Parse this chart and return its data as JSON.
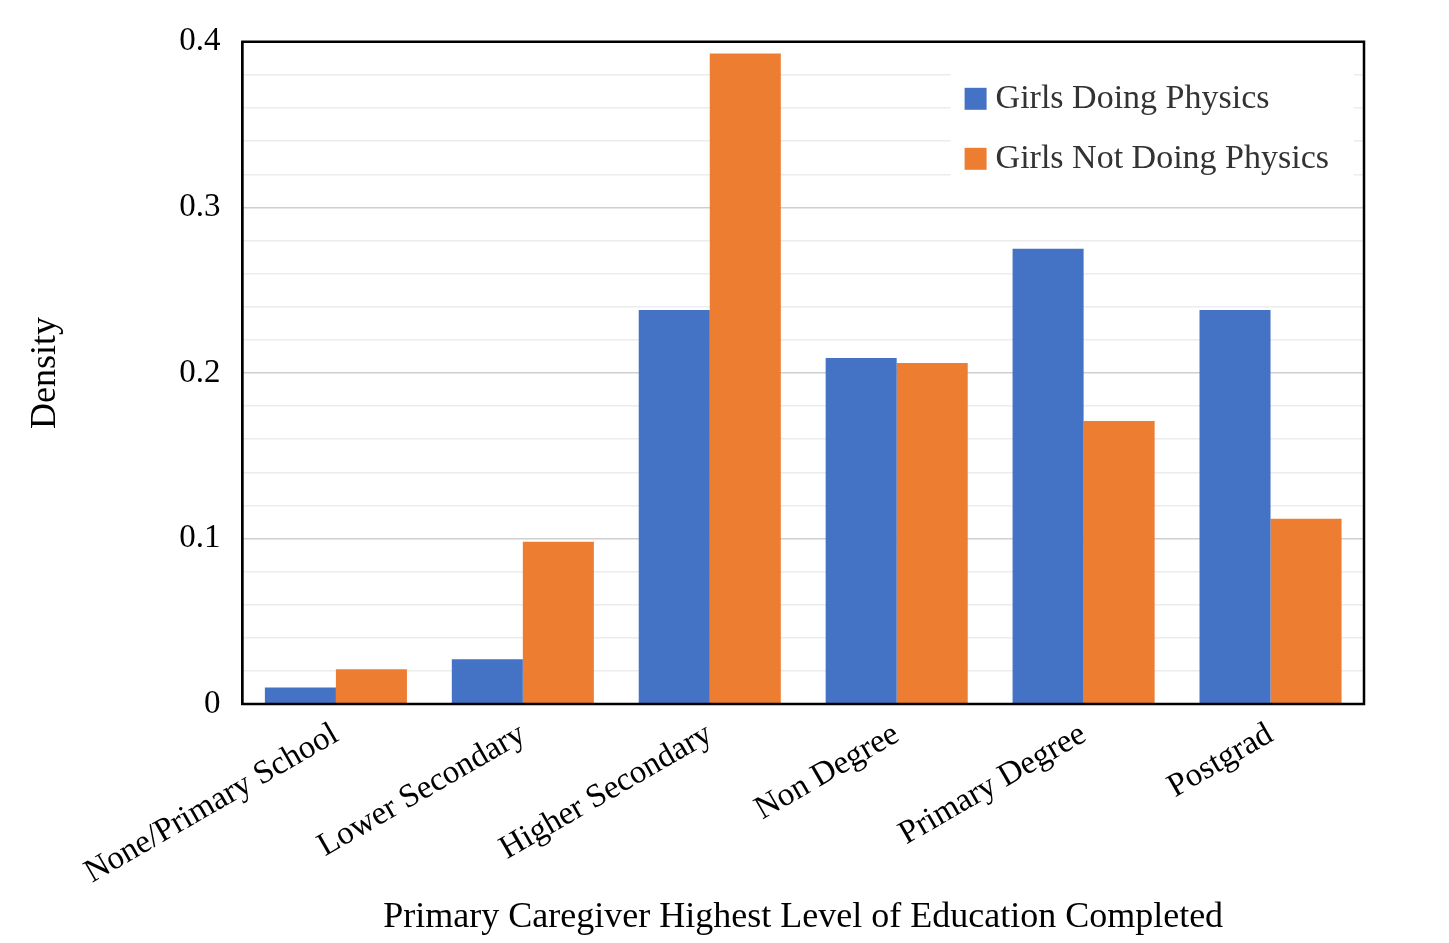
{
  "chart_data": {
    "type": "bar",
    "xlabel": "Primary Caregiver Highest Level of Education Completed",
    "ylabel": "Density",
    "categories": [
      "None/Primary School",
      "Lower Secondary",
      "Higher Secondary",
      "Non Degree",
      "Primary Degree",
      "Postgrad"
    ],
    "series": [
      {
        "name": "Girls Doing Physics",
        "color": "#4472c4",
        "values": [
          0.01,
          0.027,
          0.238,
          0.209,
          0.275,
          0.238
        ]
      },
      {
        "name": "Girls Not Doing Physics",
        "color": "#ed7d31",
        "values": [
          0.021,
          0.098,
          0.393,
          0.206,
          0.171,
          0.112
        ]
      }
    ],
    "ylim": [
      0,
      0.4
    ],
    "yticks": [
      0,
      {
        "value": 0.02,
        "label": null
      },
      {
        "value": 0.04,
        "label": null
      },
      {
        "value": 0.06,
        "label": null
      },
      {
        "value": 0.08,
        "label": null
      },
      0.1,
      {
        "value": 0.12,
        "label": null
      },
      {
        "value": 0.14,
        "label": null
      },
      {
        "value": 0.16,
        "label": null
      },
      {
        "value": 0.18,
        "label": null
      },
      0.2,
      {
        "value": 0.22,
        "label": null
      },
      {
        "value": 0.24,
        "label": null
      },
      {
        "value": 0.26,
        "label": null
      },
      {
        "value": 0.28,
        "label": null
      },
      0.3,
      {
        "value": 0.32,
        "label": null
      },
      {
        "value": 0.34,
        "label": null
      },
      {
        "value": 0.36,
        "label": null
      },
      {
        "value": 0.38,
        "label": null
      },
      0.4
    ],
    "grid": "y",
    "legend": "top right"
  }
}
